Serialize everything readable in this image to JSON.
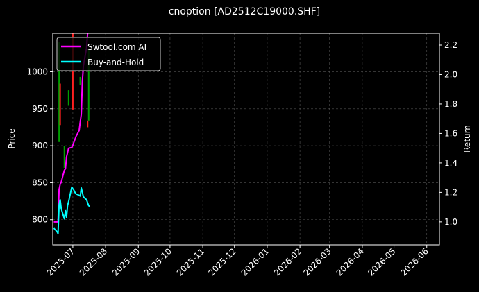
{
  "chart_data": {
    "type": "line",
    "title": "cnoption [AD2512C19000.SHF]",
    "ylabel_left": "Price",
    "ylabel_right": "Return",
    "xlim": [
      "2025-06-12",
      "2026-06-13"
    ],
    "ylim_left": [
      766,
      1052
    ],
    "ylim_right": [
      0.844,
      2.28
    ],
    "grid": true,
    "legend_position": "top-left",
    "x_ticks": [
      "2025-07",
      "2025-08",
      "2025-09",
      "2025-10",
      "2025-11",
      "2025-12",
      "2026-01",
      "2026-02",
      "2026-03",
      "2026-04",
      "2026-05",
      "2026-06"
    ],
    "left_ticks": [
      800,
      850,
      900,
      950,
      1000
    ],
    "right_ticks": [
      "1.0",
      "1.2",
      "1.4",
      "1.6",
      "1.8",
      "2.0",
      "2.2"
    ],
    "dates": [
      "2025-06-13",
      "2025-06-16",
      "2025-06-17",
      "2025-06-18",
      "2025-06-19",
      "2025-06-20",
      "2025-06-23",
      "2025-06-24",
      "2025-06-25",
      "2025-06-26",
      "2025-06-27",
      "2025-06-30",
      "2025-07-01",
      "2025-07-02",
      "2025-07-03",
      "2025-07-04",
      "2025-07-07",
      "2025-07-08",
      "2025-07-09",
      "2025-07-10",
      "2025-07-11",
      "2025-07-14",
      "2025-07-15",
      "2025-07-16",
      "2025-07-17"
    ],
    "series": [
      {
        "name": "Swtool.com AI",
        "color": "#ff00ff",
        "values": [
          1.0,
          1.0,
          1.0,
          1.22,
          1.255,
          1.27,
          1.35,
          1.36,
          1.44,
          1.47,
          1.5,
          1.505,
          1.52,
          1.54,
          1.56,
          1.58,
          1.62,
          1.68,
          1.73,
          1.95,
          2.06,
          2.18,
          2.28,
          2.3,
          2.3
        ]
      },
      {
        "name": "Buy-and-Hold",
        "color": "#00ffff",
        "values": [
          0.957,
          0.934,
          0.92,
          1.113,
          1.15,
          1.09,
          1.02,
          1.076,
          1.03,
          1.11,
          1.137,
          1.236,
          1.225,
          1.215,
          1.2,
          1.19,
          1.18,
          1.175,
          1.23,
          1.2,
          1.17,
          1.15,
          1.13,
          1.11,
          1.105
        ]
      }
    ],
    "candles": [
      {
        "date": "2025-06-18",
        "open": 905,
        "close": 1040,
        "color": "#00a000"
      },
      {
        "date": "2025-06-19",
        "open": 984,
        "close": 928,
        "color": "#ff2020"
      },
      {
        "date": "2025-06-23",
        "open": 870,
        "close": 900,
        "color": "#00a000"
      },
      {
        "date": "2025-06-27",
        "open": 954,
        "close": 975,
        "color": "#00a000"
      },
      {
        "date": "2025-07-01",
        "open": 1052,
        "close": 949,
        "color": "#ff2020"
      },
      {
        "date": "2025-07-08",
        "open": 982,
        "close": 993,
        "color": "#00a000"
      },
      {
        "date": "2025-07-15",
        "open": 934,
        "close": 925,
        "color": "#ff2020"
      },
      {
        "date": "2025-07-16",
        "open": 934,
        "close": 1030,
        "color": "#00a000"
      }
    ]
  }
}
